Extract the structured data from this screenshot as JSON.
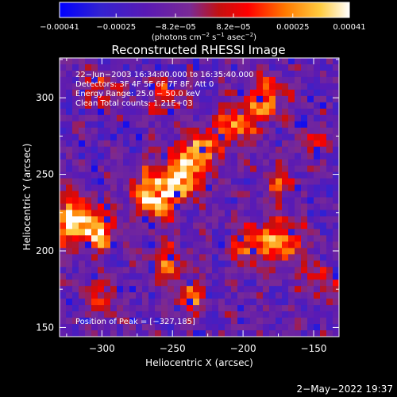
{
  "chart_data": {
    "type": "heatmap",
    "title": "Reconstructed RHESSI Image",
    "xlabel": "Heliocentric X (arcsec)",
    "ylabel": "Heliocentric Y (arcsec)",
    "xlim": [
      -330,
      -132
    ],
    "ylim": [
      144,
      326
    ],
    "x_ticks": [
      -300,
      -250,
      -200,
      -150
    ],
    "x_tick_labels": [
      "−300",
      "−250",
      "−200",
      "−150"
    ],
    "y_ticks": [
      150,
      200,
      250,
      300
    ],
    "y_tick_labels": [
      "150",
      "200",
      "250",
      "300"
    ],
    "colorbar": {
      "range": [
        -0.00041,
        0.00041
      ],
      "ticks": [
        -0.00041,
        -0.00025,
        -8.2e-05,
        8.2e-05,
        0.00025,
        0.00041
      ],
      "tick_labels": [
        "−0.00041",
        "−0.00025",
        "−8.2e−05",
        "8.2e−05",
        "0.00025",
        "0.00041"
      ],
      "unit_label": [
        "(photons cm",
        "−2",
        " s",
        "−1",
        " asec",
        "−2",
        ")"
      ],
      "colors": [
        "#0000ff",
        "#5a1ab4",
        "#7a2a95",
        "#ff0000",
        "#ff9900",
        "#ffffff"
      ]
    },
    "annotations": [
      "22−Jun−2003 16:34:00.000 to 16:35:40.000",
      "Detectors: 3F 4F 5F 6F 7F 8F, Att 0",
      "Energy Range: 25.0 − 50.0 keV",
      "Clean     Total counts: 1.21E+03"
    ],
    "peak_label": "Position of Peak = [−327,185]",
    "peak": [
      -327,
      185
    ],
    "emission_regions": [
      {
        "x": -322,
        "y": 220,
        "sigma": 11,
        "amp": 1.0
      },
      {
        "x": -302,
        "y": 212,
        "sigma": 9,
        "amp": 0.75
      },
      {
        "x": -262,
        "y": 237,
        "sigma": 12,
        "amp": 0.9
      },
      {
        "x": -242,
        "y": 250,
        "sigma": 10,
        "amp": 0.85
      },
      {
        "x": -230,
        "y": 268,
        "sigma": 9,
        "amp": 0.7
      },
      {
        "x": -205,
        "y": 282,
        "sigma": 9,
        "amp": 0.7
      },
      {
        "x": -185,
        "y": 300,
        "sigma": 10,
        "amp": 0.75
      },
      {
        "x": -175,
        "y": 245,
        "sigma": 8,
        "amp": 0.55
      },
      {
        "x": -172,
        "y": 205,
        "sigma": 10,
        "amp": 0.8
      },
      {
        "x": -195,
        "y": 205,
        "sigma": 9,
        "amp": 0.65
      },
      {
        "x": -255,
        "y": 192,
        "sigma": 9,
        "amp": 0.55
      },
      {
        "x": -238,
        "y": 170,
        "sigma": 8,
        "amp": 0.6
      },
      {
        "x": -255,
        "y": 300,
        "sigma": 8,
        "amp": 0.55
      },
      {
        "x": -300,
        "y": 305,
        "sigma": 8,
        "amp": 0.5
      },
      {
        "x": -300,
        "y": 170,
        "sigma": 8,
        "amp": 0.45
      },
      {
        "x": -145,
        "y": 180,
        "sigma": 8,
        "amp": 0.5
      },
      {
        "x": -150,
        "y": 270,
        "sigma": 7,
        "amp": 0.4
      }
    ]
  },
  "timestamp": "2−May−2022 19:37"
}
